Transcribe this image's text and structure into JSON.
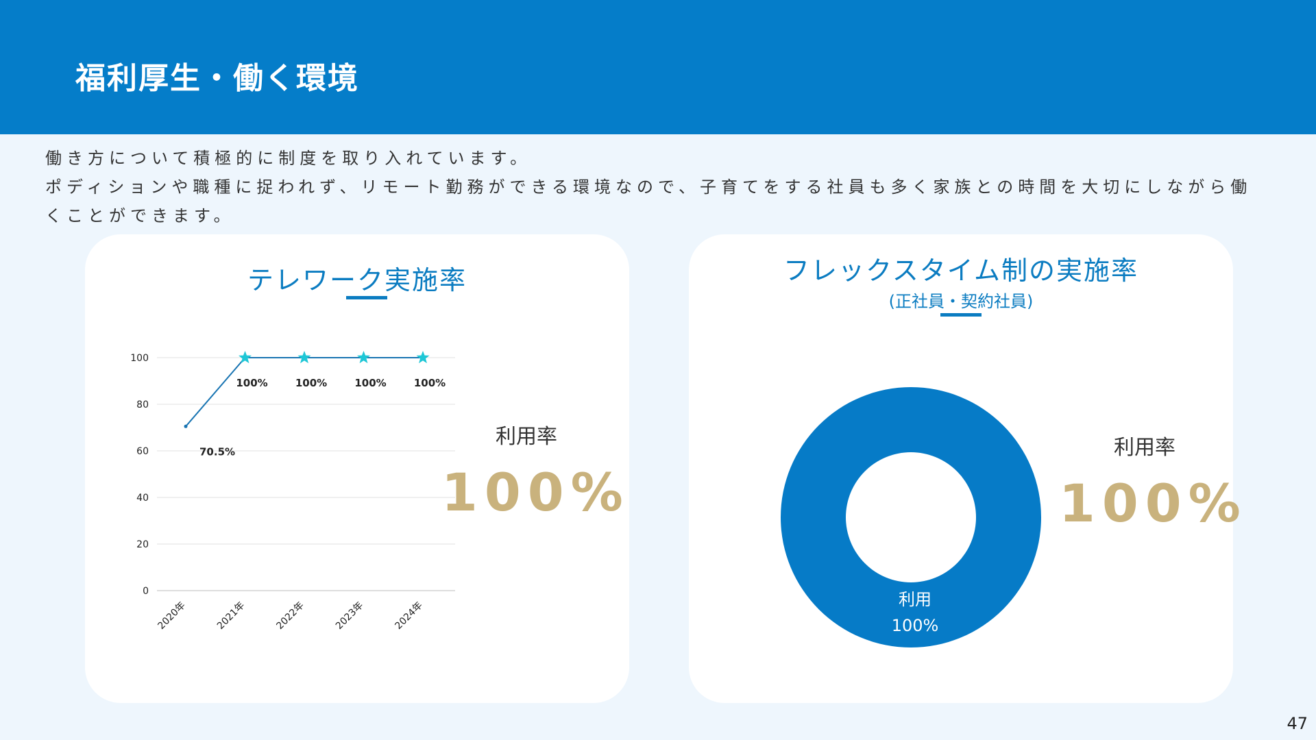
{
  "header": {
    "title": "福利厚生・働く環境"
  },
  "intro": {
    "line1": "働き方について積極的に制度を取り入れています。",
    "line2": "ポディションや職種に捉われず、リモート勤務ができる環境なので、子育てをする社員も多く家族との時間を大切にしながら働",
    "line3": "くことができます。"
  },
  "telework": {
    "title": "テレワーク実施率",
    "rate_label": "利用率",
    "rate_value": "100%"
  },
  "flex": {
    "title": "フレックスタイム制の実施率",
    "subtitle": "(正社員・契約社員)",
    "rate_label": "利用率",
    "rate_value": "100%"
  },
  "page_number": "47",
  "colors": {
    "header": "#057dc9",
    "accent": "#0b7cc1",
    "star": "#1ec7d6",
    "gold": "#c9b27d",
    "donut": "#067bc7"
  },
  "chart_data": [
    {
      "type": "line",
      "categories": [
        "2020年",
        "2021年",
        "2022年",
        "2023年",
        "2024年"
      ],
      "series": [
        {
          "values": [
            70.5,
            100,
            100,
            100,
            100
          ]
        }
      ],
      "data_labels": [
        "70.5%",
        "100%",
        "100%",
        "100%",
        "100%"
      ],
      "markers": [
        "dot",
        "star",
        "star",
        "star",
        "star"
      ],
      "yticks": [
        0,
        20,
        40,
        60,
        80,
        100
      ],
      "ylim": [
        0,
        100
      ],
      "grid": true
    },
    {
      "type": "pie",
      "donut": true,
      "labels": [
        "利用"
      ],
      "values": [
        100
      ],
      "data_labels": [
        "100%"
      ]
    }
  ]
}
